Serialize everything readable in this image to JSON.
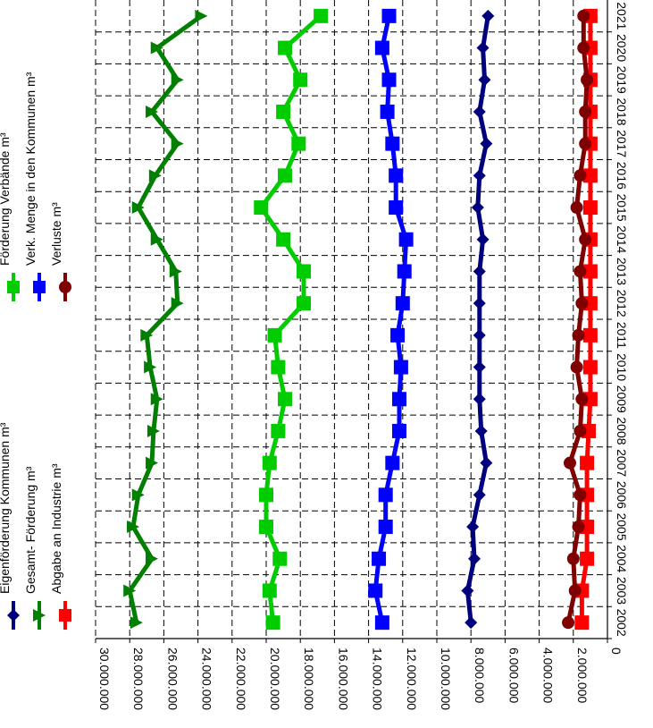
{
  "chart_data": {
    "type": "line",
    "orientation": "rotated-90",
    "title": "",
    "xlabel": "",
    "ylabel": "",
    "ylim": [
      0,
      30000000
    ],
    "y_ticks": [
      "0",
      "2.000.000",
      "4.000.000",
      "6.000.000",
      "8.000.000",
      "10.000.000",
      "12.000.000",
      "14.000.000",
      "16.000.000",
      "18.000.000",
      "20.000.000",
      "22.000.000",
      "24.000.000",
      "26.000.000",
      "28.000.000",
      "30.000.000"
    ],
    "grid": true,
    "legend_position": "top-left",
    "categories": [
      "2002",
      "2003",
      "2004",
      "2005",
      "2006",
      "2007",
      "2008",
      "2009",
      "2010",
      "2011",
      "2012",
      "2013",
      "2014",
      "2015",
      "2016",
      "2017",
      "2018",
      "2019",
      "2020",
      "2021"
    ],
    "series": [
      {
        "name": "Eigenförderung Kommunen m³",
        "color": "#00007f",
        "marker": "diamond",
        "values": [
          8000000,
          8200000,
          7800000,
          7900000,
          7500000,
          7100000,
          7400000,
          7500000,
          7500000,
          7500000,
          7500000,
          7500000,
          7300000,
          7600000,
          7500000,
          7100000,
          7500000,
          7200000,
          7300000,
          7000000
        ]
      },
      {
        "name": "Gesamt- Förderung m³",
        "color": "#007f00",
        "marker": "triangle",
        "values": [
          27600000,
          28000000,
          26700000,
          27800000,
          27500000,
          26700000,
          26600000,
          26400000,
          26800000,
          27000000,
          25200000,
          25300000,
          26400000,
          27500000,
          26500000,
          25200000,
          26700000,
          25200000,
          26400000,
          23800000
        ]
      },
      {
        "name": "Förderung Verbände m³",
        "color": "#00cc00",
        "marker": "square",
        "values": [
          19600000,
          19800000,
          19200000,
          20000000,
          20000000,
          19800000,
          19300000,
          18900000,
          19300000,
          19500000,
          17800000,
          17800000,
          19000000,
          20300000,
          18900000,
          18100000,
          19000000,
          18000000,
          18900000,
          16800000
        ]
      },
      {
        "name": "Verk. Menge in den Kommunen m³",
        "color": "#0000ff",
        "marker": "square",
        "values": [
          13200000,
          13600000,
          13400000,
          13000000,
          13000000,
          12600000,
          12200000,
          12200000,
          12100000,
          12300000,
          12000000,
          11900000,
          11800000,
          12400000,
          12400000,
          12600000,
          12900000,
          12800000,
          13200000,
          12800000
        ]
      },
      {
        "name": "Abgabe an Industrie m³",
        "color": "#ff0000",
        "marker": "square",
        "values": [
          1500000,
          1500000,
          1200000,
          1200000,
          1200000,
          1200000,
          1100000,
          1000000,
          1000000,
          1000000,
          1000000,
          1000000,
          1000000,
          1000000,
          1000000,
          1000000,
          1000000,
          1000000,
          1000000,
          1000000
        ]
      },
      {
        "name": "Verluste m³",
        "color": "#7f0000",
        "marker": "circle",
        "values": [
          2300000,
          1900000,
          2000000,
          1700000,
          1600000,
          2200000,
          1600000,
          1500000,
          1800000,
          1700000,
          1500000,
          1600000,
          1300000,
          1800000,
          1600000,
          1300000,
          1300000,
          1200000,
          1400000,
          1400000
        ]
      }
    ]
  }
}
